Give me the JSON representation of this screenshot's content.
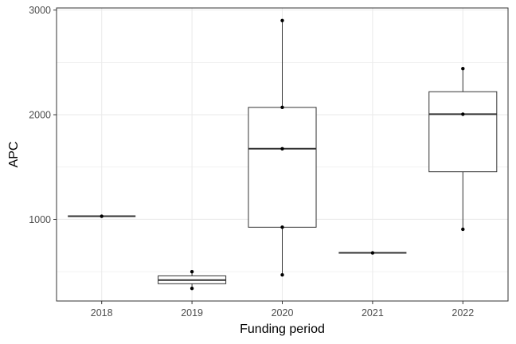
{
  "chart_data": {
    "type": "boxplot",
    "title": "",
    "xlabel": "Funding period",
    "ylabel": "APC",
    "categories": [
      "2018",
      "2019",
      "2020",
      "2021",
      "2022"
    ],
    "ylim": [
      220,
      3020
    ],
    "y_ticks": [
      1000,
      2000,
      3000
    ],
    "y_tick_labels": [
      "1000",
      "2000",
      "3000"
    ],
    "grid": true,
    "legend": "none",
    "colors": {
      "box_fill": "#ffffff",
      "box_stroke": "#333333",
      "point": "#000000",
      "grid": "#ebebeb",
      "panel_border": "#333333"
    },
    "boxes": [
      {
        "category": "2018",
        "min": 1030,
        "q1": 1030,
        "median": 1030,
        "q3": 1030,
        "max": 1030,
        "points": [
          1030
        ]
      },
      {
        "category": "2019",
        "min": 340,
        "q1": 385,
        "median": 420,
        "q3": 460,
        "max": 500,
        "points": [
          340,
          500
        ]
      },
      {
        "category": "2020",
        "min": 470,
        "q1": 925,
        "median": 1675,
        "q3": 2070,
        "max": 2900,
        "points": [
          470,
          925,
          1675,
          2070,
          2900
        ]
      },
      {
        "category": "2021",
        "min": 680,
        "q1": 680,
        "median": 680,
        "q3": 680,
        "max": 680,
        "points": [
          680
        ]
      },
      {
        "category": "2022",
        "min": 905,
        "q1": 1455,
        "median": 2005,
        "q3": 2220,
        "max": 2440,
        "points": [
          905,
          2005,
          2440
        ]
      }
    ]
  }
}
